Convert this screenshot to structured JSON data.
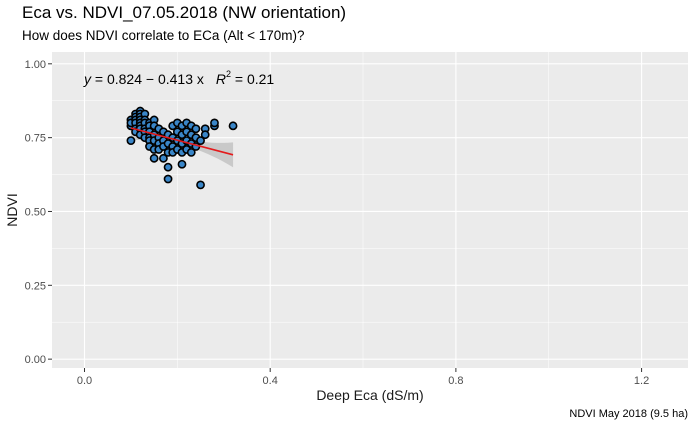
{
  "title": "Eca vs. NDVI_07.05.2018 (NW orientation)",
  "subtitle": "How does NDVI correlate to ECa (Alt < 170m)?",
  "caption": "NDVI May 2018 (9.5 ha)",
  "colors": {
    "panel": "#ebebeb",
    "grid_major": "#ffffff",
    "point_fill": "#3a86c8",
    "point_stroke": "#000000",
    "fit_line": "#e41a1c",
    "ci_band": "#bdbdbd"
  },
  "chart_data": {
    "type": "scatter",
    "xlabel": "Deep Eca (dS/m)",
    "ylabel": "NDVI",
    "xlim": [
      -0.07,
      1.3
    ],
    "ylim": [
      -0.03,
      1.04
    ],
    "x_ticks": [
      0.0,
      0.4,
      0.8,
      1.2
    ],
    "x_tick_labels": [
      "0.0",
      "0.4",
      "0.8",
      "1.2"
    ],
    "y_ticks": [
      0.0,
      0.25,
      0.5,
      0.75,
      1.0
    ],
    "y_tick_labels": [
      "0.00",
      "0.25",
      "0.50",
      "0.75",
      "1.00"
    ],
    "grid": true,
    "equation": {
      "lhs": "y",
      "formula": " = 0.824 − 0.413 x",
      "r2_symbol": "R",
      "r2_exp": "2",
      "r2_value": " = 0.21"
    },
    "fit": {
      "intercept": 0.824,
      "slope": -0.413,
      "x_range": [
        0.1,
        0.32
      ]
    },
    "points": [
      [
        0.1,
        0.81
      ],
      [
        0.1,
        0.79
      ],
      [
        0.1,
        0.8
      ],
      [
        0.1,
        0.74
      ],
      [
        0.11,
        0.83
      ],
      [
        0.11,
        0.82
      ],
      [
        0.11,
        0.81
      ],
      [
        0.11,
        0.8
      ],
      [
        0.11,
        0.78
      ],
      [
        0.11,
        0.77
      ],
      [
        0.12,
        0.84
      ],
      [
        0.12,
        0.83
      ],
      [
        0.12,
        0.82
      ],
      [
        0.12,
        0.81
      ],
      [
        0.12,
        0.8
      ],
      [
        0.12,
        0.79
      ],
      [
        0.12,
        0.78
      ],
      [
        0.12,
        0.76
      ],
      [
        0.13,
        0.83
      ],
      [
        0.13,
        0.81
      ],
      [
        0.13,
        0.8
      ],
      [
        0.13,
        0.78
      ],
      [
        0.13,
        0.77
      ],
      [
        0.13,
        0.75
      ],
      [
        0.14,
        0.8
      ],
      [
        0.14,
        0.79
      ],
      [
        0.14,
        0.77
      ],
      [
        0.14,
        0.75
      ],
      [
        0.14,
        0.74
      ],
      [
        0.14,
        0.72
      ],
      [
        0.15,
        0.81
      ],
      [
        0.15,
        0.79
      ],
      [
        0.15,
        0.76
      ],
      [
        0.15,
        0.74
      ],
      [
        0.15,
        0.71
      ],
      [
        0.15,
        0.68
      ],
      [
        0.16,
        0.78
      ],
      [
        0.16,
        0.75
      ],
      [
        0.16,
        0.73
      ],
      [
        0.16,
        0.71
      ],
      [
        0.17,
        0.77
      ],
      [
        0.17,
        0.74
      ],
      [
        0.17,
        0.72
      ],
      [
        0.17,
        0.68
      ],
      [
        0.18,
        0.76
      ],
      [
        0.18,
        0.73
      ],
      [
        0.18,
        0.7
      ],
      [
        0.18,
        0.65
      ],
      [
        0.18,
        0.61
      ],
      [
        0.19,
        0.79
      ],
      [
        0.19,
        0.75
      ],
      [
        0.19,
        0.72
      ],
      [
        0.19,
        0.7
      ],
      [
        0.2,
        0.8
      ],
      [
        0.2,
        0.77
      ],
      [
        0.2,
        0.74
      ],
      [
        0.2,
        0.71
      ],
      [
        0.21,
        0.79
      ],
      [
        0.21,
        0.76
      ],
      [
        0.21,
        0.73
      ],
      [
        0.21,
        0.7
      ],
      [
        0.21,
        0.66
      ],
      [
        0.22,
        0.8
      ],
      [
        0.22,
        0.77
      ],
      [
        0.22,
        0.74
      ],
      [
        0.22,
        0.71
      ],
      [
        0.23,
        0.79
      ],
      [
        0.23,
        0.76
      ],
      [
        0.23,
        0.73
      ],
      [
        0.23,
        0.7
      ],
      [
        0.24,
        0.78
      ],
      [
        0.24,
        0.75
      ],
      [
        0.24,
        0.72
      ],
      [
        0.25,
        0.74
      ],
      [
        0.25,
        0.59
      ],
      [
        0.26,
        0.78
      ],
      [
        0.26,
        0.76
      ],
      [
        0.28,
        0.79
      ],
      [
        0.28,
        0.8
      ],
      [
        0.32,
        0.79
      ]
    ]
  }
}
